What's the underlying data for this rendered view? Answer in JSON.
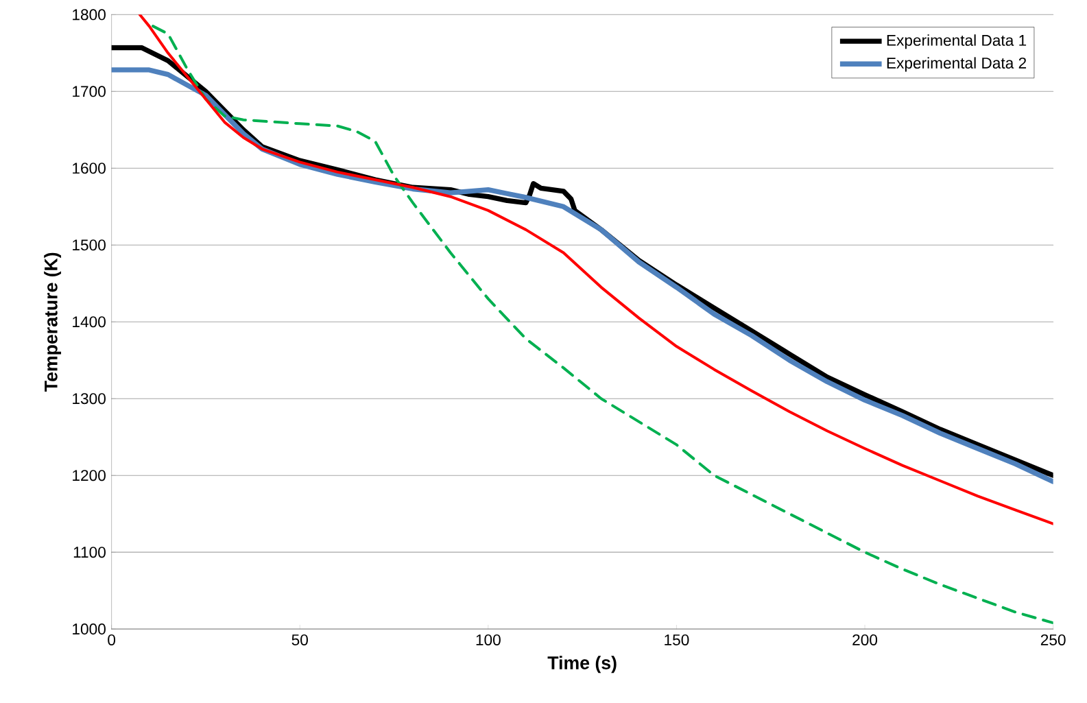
{
  "chart_data": {
    "type": "line",
    "xlabel": "Time (s)",
    "ylabel": "Temperature (K)",
    "xlim": [
      0,
      250
    ],
    "ylim": [
      1000,
      1800
    ],
    "xticks": [
      0,
      50,
      100,
      150,
      200,
      250
    ],
    "yticks": [
      1000,
      1100,
      1200,
      1300,
      1400,
      1500,
      1600,
      1700,
      1800
    ],
    "grid": "y",
    "legend": "top right",
    "marker": "none",
    "series": [
      {
        "name": "Experimental Data 1",
        "color": "#000000",
        "line_style": "solid",
        "x": [
          0,
          8,
          15,
          25,
          35,
          40,
          50,
          60,
          70,
          80,
          90,
          95,
          100,
          105,
          110,
          111,
          112,
          114,
          120,
          122,
          123,
          130,
          140,
          150,
          160,
          170,
          180,
          190,
          200,
          210,
          220,
          230,
          240,
          250
        ],
        "values": [
          1757,
          1757,
          1740,
          1700,
          1650,
          1628,
          1610,
          1598,
          1585,
          1575,
          1572,
          1566,
          1563,
          1558,
          1555,
          1565,
          1580,
          1574,
          1570,
          1560,
          1545,
          1520,
          1480,
          1448,
          1418,
          1388,
          1358,
          1328,
          1305,
          1283,
          1260,
          1240,
          1220,
          1200
        ]
      },
      {
        "name": "Experimental Data 2",
        "color": "#4f81bd",
        "line_style": "solid",
        "x": [
          0,
          10,
          15,
          25,
          35,
          40,
          50,
          60,
          70,
          80,
          90,
          95,
          100,
          105,
          110,
          120,
          130,
          140,
          150,
          160,
          170,
          180,
          190,
          200,
          210,
          220,
          230,
          240,
          250
        ],
        "values": [
          1728,
          1728,
          1722,
          1695,
          1645,
          1625,
          1605,
          1592,
          1582,
          1573,
          1568,
          1570,
          1572,
          1567,
          1562,
          1550,
          1520,
          1478,
          1445,
          1410,
          1382,
          1350,
          1322,
          1298,
          1278,
          1255,
          1235,
          1215,
          1192
        ]
      },
      {
        "color": "#00b050",
        "line_style": "dashed",
        "x": [
          11,
          15,
          20,
          25,
          30,
          35,
          50,
          60,
          65,
          70,
          75,
          80,
          90,
          100,
          110,
          120,
          130,
          140,
          150,
          160,
          170,
          180,
          190,
          200,
          210,
          220,
          230,
          240,
          250
        ],
        "values": [
          1785,
          1775,
          1730,
          1690,
          1668,
          1663,
          1658,
          1655,
          1648,
          1635,
          1590,
          1555,
          1490,
          1430,
          1378,
          1340,
          1300,
          1270,
          1240,
          1200,
          1175,
          1150,
          1125,
          1100,
          1078,
          1058,
          1040,
          1022,
          1008
        ]
      },
      {
        "color": "#ff0000",
        "line_style": "solid",
        "x": [
          7.5,
          10,
          15,
          20,
          25,
          30,
          35,
          40,
          50,
          60,
          70,
          80,
          90,
          100,
          110,
          120,
          130,
          140,
          150,
          160,
          170,
          180,
          190,
          200,
          210,
          220,
          230,
          240,
          250
        ],
        "values": [
          1800,
          1785,
          1750,
          1720,
          1690,
          1660,
          1640,
          1625,
          1608,
          1595,
          1585,
          1575,
          1563,
          1545,
          1520,
          1490,
          1445,
          1405,
          1368,
          1338,
          1310,
          1283,
          1258,
          1235,
          1213,
          1193,
          1173,
          1155,
          1137
        ]
      }
    ]
  }
}
